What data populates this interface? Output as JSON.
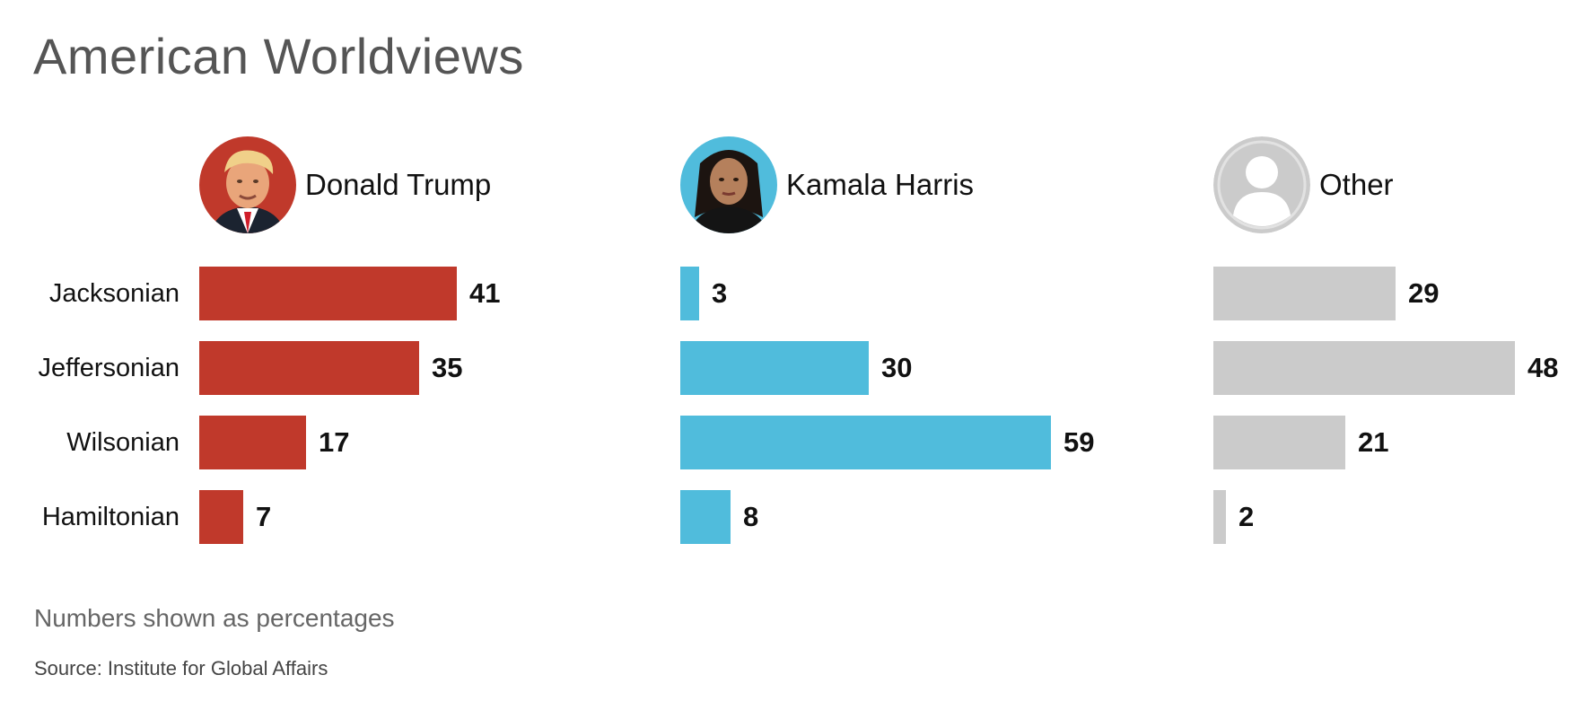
{
  "title": "American Worldviews",
  "note": "Numbers shown as percentages",
  "source": "Source: Institute for Global Affairs",
  "colors": {
    "trump": "#c0392b",
    "harris": "#50bcdc",
    "other": "#cbcbcb",
    "title": "#555555"
  },
  "chart_data": {
    "type": "bar",
    "orientation": "horizontal",
    "title": "American Worldviews",
    "categories": [
      "Jacksonian",
      "Jeffersonian",
      "Wilsonian",
      "Hamiltonian"
    ],
    "series": [
      {
        "name": "Donald Trump",
        "color": "#c0392b",
        "avatar": "trump-photo-icon",
        "values": [
          41,
          35,
          17,
          7
        ]
      },
      {
        "name": "Kamala Harris",
        "color": "#50bcdc",
        "avatar": "harris-photo-icon",
        "values": [
          3,
          30,
          59,
          8
        ]
      },
      {
        "name": "Other",
        "color": "#cbcbcb",
        "avatar": "generic-person-icon",
        "values": [
          29,
          48,
          21,
          2
        ]
      }
    ],
    "value_unit": "percent",
    "xlim": [
      0,
      60
    ],
    "grid": false,
    "legend": "none"
  }
}
